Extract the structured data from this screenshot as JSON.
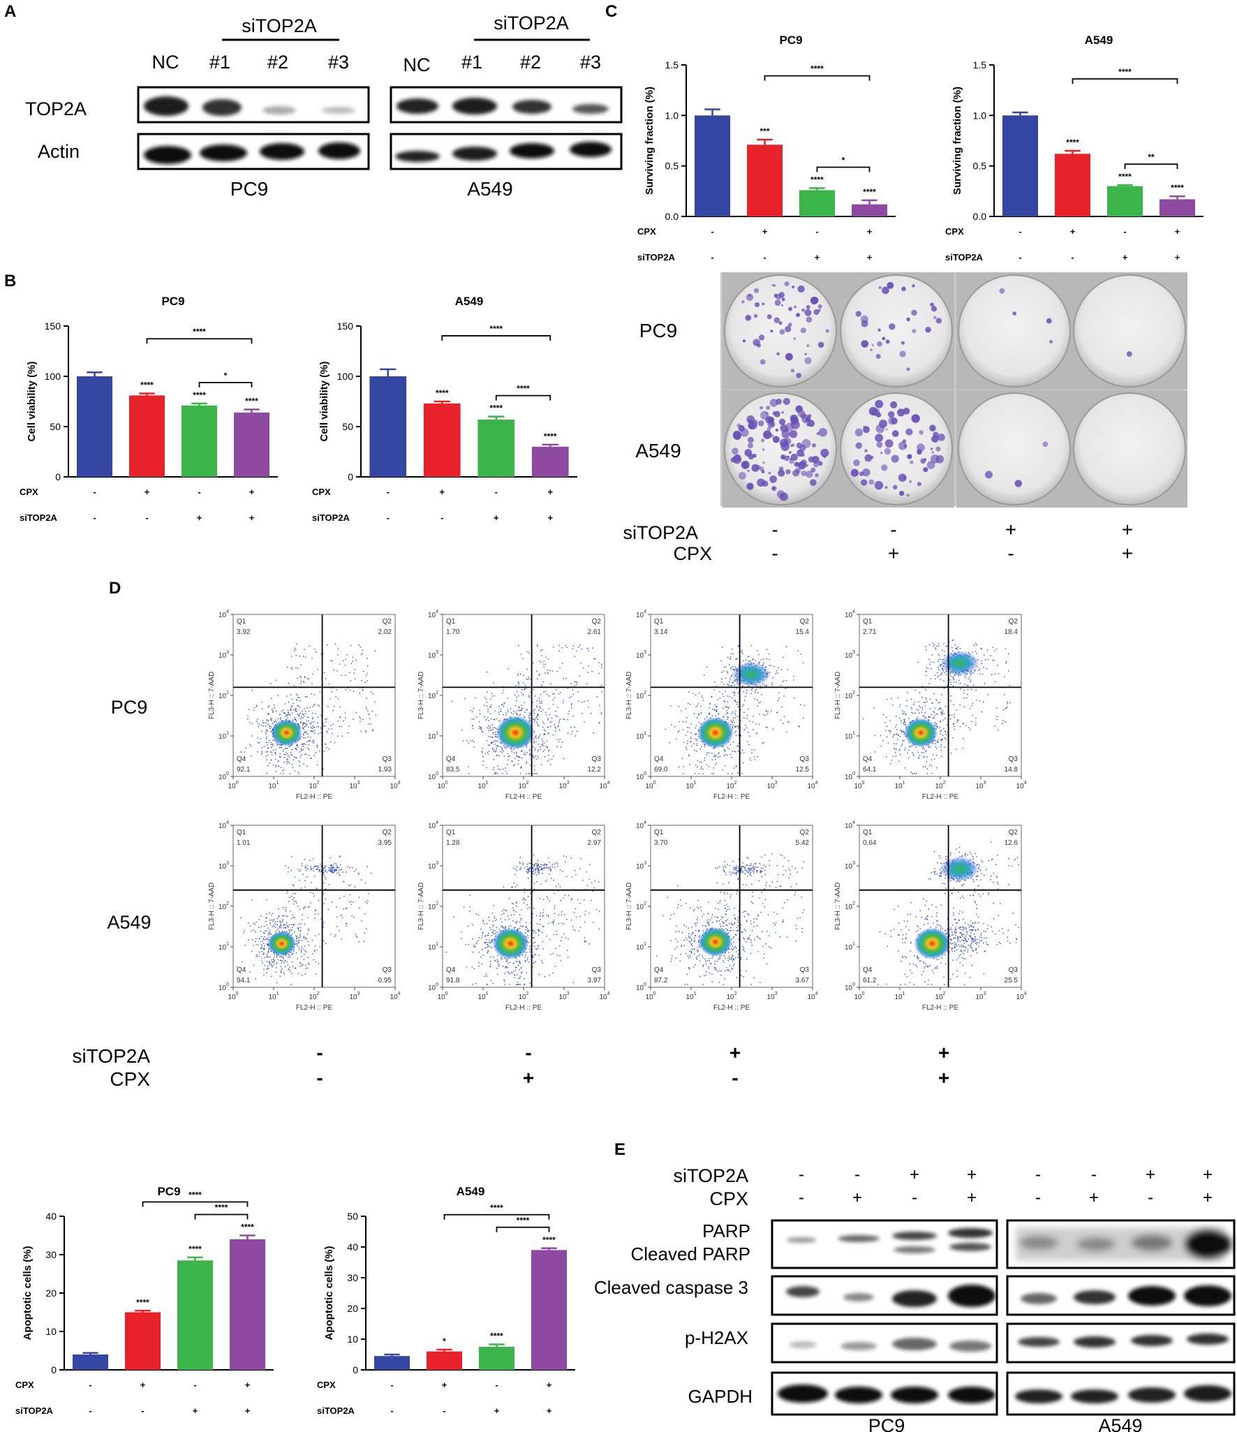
{
  "colors": {
    "blue": "#3346a1",
    "red": "#e8222a",
    "green": "#3bb44a",
    "purple": "#8e4aa0",
    "dish": "#dcdcdc",
    "colony": "#6b4fb5"
  },
  "panelA": {
    "letter": "A",
    "group_label": "siTOP2A",
    "lanes": [
      "NC",
      "#1",
      "#2",
      "#3"
    ],
    "rows": [
      "TOP2A",
      "Actin"
    ],
    "cells": [
      "PC9",
      "A549"
    ]
  },
  "panelB": {
    "letter": "B",
    "cond_labels": [
      "CPX",
      "siTOP2A"
    ],
    "conditions": {
      "CPX": [
        "-",
        "+",
        "-",
        "+"
      ],
      "siTOP2A": [
        "-",
        "-",
        "+",
        "+"
      ]
    },
    "chart_data": [
      {
        "type": "bar",
        "title": "PC9",
        "ylabel": "Cell viability (%)",
        "ylim": [
          0,
          150
        ],
        "yticks": [
          "0",
          "50",
          "100",
          "150"
        ],
        "values": [
          100,
          81,
          71,
          64
        ],
        "errors": [
          4,
          2,
          2,
          3
        ],
        "bar_stars": [
          "",
          "****",
          "****",
          "****"
        ],
        "brackets": [
          {
            "from": 1,
            "to": 3,
            "label": "****"
          },
          {
            "from": 2,
            "to": 3,
            "label": "*"
          }
        ]
      },
      {
        "type": "bar",
        "title": "A549",
        "ylabel": "Cell viability (%)",
        "ylim": [
          0,
          150
        ],
        "yticks": [
          "0",
          "50",
          "100",
          "150"
        ],
        "values": [
          100,
          73,
          57,
          30
        ],
        "errors": [
          7,
          2,
          3,
          2
        ],
        "bar_stars": [
          "",
          "****",
          "****",
          "****"
        ],
        "brackets": [
          {
            "from": 1,
            "to": 3,
            "label": "****"
          },
          {
            "from": 2,
            "to": 3,
            "label": "****"
          }
        ]
      }
    ]
  },
  "panelC": {
    "letter": "C",
    "cond_labels": [
      "CPX",
      "siTOP2A"
    ],
    "conditions": {
      "CPX": [
        "-",
        "+",
        "-",
        "+"
      ],
      "siTOP2A": [
        "-",
        "-",
        "+",
        "+"
      ]
    },
    "chart_data": [
      {
        "type": "bar",
        "title": "PC9",
        "ylabel": "Surviving fraction (%)",
        "ylim": [
          0,
          1.5
        ],
        "yticks": [
          "0.0",
          "0.5",
          "1.0",
          "1.5"
        ],
        "values": [
          1.0,
          0.71,
          0.26,
          0.12
        ],
        "errors": [
          0.06,
          0.05,
          0.02,
          0.04
        ],
        "bar_stars": [
          "",
          "***",
          "****",
          "****"
        ],
        "brackets": [
          {
            "from": 1,
            "to": 3,
            "label": "****"
          },
          {
            "from": 2,
            "to": 3,
            "label": "*"
          }
        ]
      },
      {
        "type": "bar",
        "title": "A549",
        "ylabel": "Surviving fraction (%)",
        "ylim": [
          0,
          1.5
        ],
        "yticks": [
          "0.0",
          "0.5",
          "1.0",
          "1.5"
        ],
        "values": [
          1.0,
          0.62,
          0.3,
          0.17
        ],
        "errors": [
          0.03,
          0.03,
          0.01,
          0.03
        ],
        "bar_stars": [
          "",
          "****",
          "****",
          "****"
        ],
        "brackets": [
          {
            "from": 1,
            "to": 3,
            "label": "****"
          },
          {
            "from": 2,
            "to": 3,
            "label": "**"
          }
        ]
      }
    ],
    "dish_rows": [
      "PC9",
      "A549"
    ],
    "bottom_labels": [
      "siTOP2A",
      "CPX"
    ],
    "bottom_si": [
      "-",
      "-",
      "+",
      "+"
    ],
    "bottom_cpx": [
      "-",
      "+",
      "-",
      "+"
    ]
  },
  "panelD": {
    "letter": "D",
    "rows": [
      "PC9",
      "A549"
    ],
    "xlabel": "FL2-H :: PE",
    "ylabel": "FL3-H :: 7-AAD",
    "axis_ticks": [
      "10",
      "10",
      "10",
      "10",
      "10"
    ],
    "axis_exps": [
      "0",
      "1",
      "2",
      "3",
      "4"
    ],
    "quad_names": [
      "Q1",
      "Q2",
      "Q3",
      "Q4"
    ],
    "plots": [
      {
        "q1": "3.92",
        "q2": "2.02",
        "q3": "1.93",
        "q4": "92.1"
      },
      {
        "q1": "1.70",
        "q2": "2.61",
        "q3": "12.2",
        "q4": "83.5"
      },
      {
        "q1": "3.14",
        "q2": "15.4",
        "q3": "12.5",
        "q4": "69.0"
      },
      {
        "q1": "2.71",
        "q2": "18.4",
        "q3": "14.8",
        "q4": "64.1"
      },
      {
        "q1": "1.01",
        "q2": "3.95",
        "q3": "0.95",
        "q4": "94.1"
      },
      {
        "q1": "1.28",
        "q2": "2.97",
        "q3": "3.97",
        "q4": "91.8"
      },
      {
        "q1": "3.70",
        "q2": "5.42",
        "q3": "3.67",
        "q4": "87.2"
      },
      {
        "q1": "0.64",
        "q2": "12.6",
        "q3": "25.5",
        "q4": "61.2"
      }
    ],
    "bottom_labels": [
      "siTOP2A",
      "CPX"
    ],
    "bottom_si": [
      "-",
      "-",
      "+",
      "+"
    ],
    "bottom_cpx": [
      "-",
      "+",
      "-",
      "+"
    ]
  },
  "panelApop": {
    "cond_labels": [
      "CPX",
      "siTOP2A"
    ],
    "conditions": {
      "CPX": [
        "-",
        "+",
        "-",
        "+"
      ],
      "siTOP2A": [
        "-",
        "-",
        "+",
        "+"
      ]
    },
    "chart_data": [
      {
        "type": "bar",
        "title": "PC9",
        "ylabel": "Apoptotic cells (%)",
        "ylim": [
          0,
          40
        ],
        "yticks": [
          "0",
          "10",
          "20",
          "30",
          "40"
        ],
        "values": [
          4,
          15,
          28.5,
          34
        ],
        "errors": [
          0.4,
          0.4,
          0.8,
          1
        ],
        "bar_stars": [
          "",
          "****",
          "****",
          "****"
        ],
        "brackets": [
          {
            "from": 1,
            "to": 3,
            "label": "****"
          },
          {
            "from": 2,
            "to": 3,
            "label": "****"
          }
        ]
      },
      {
        "type": "bar",
        "title": "A549",
        "ylabel": "Apoptotic cells (%)",
        "ylim": [
          0,
          50
        ],
        "yticks": [
          "0",
          "10",
          "20",
          "30",
          "40",
          "50"
        ],
        "values": [
          4.5,
          6,
          7.5,
          39
        ],
        "errors": [
          0.5,
          0.6,
          0.8,
          0.6
        ],
        "bar_stars": [
          "",
          "*",
          "****",
          "****"
        ],
        "brackets": [
          {
            "from": 1,
            "to": 3,
            "label": "****"
          },
          {
            "from": 2,
            "to": 3,
            "label": "****"
          }
        ]
      }
    ]
  },
  "panelE": {
    "letter": "E",
    "cond_labels": [
      "siTOP2A",
      "CPX"
    ],
    "si": [
      "-",
      "-",
      "+",
      "+",
      "-",
      "-",
      "+",
      "+"
    ],
    "cpx": [
      "-",
      "+",
      "-",
      "+",
      "-",
      "+",
      "-",
      "+"
    ],
    "rows": [
      "PARP",
      "Cleaved PARP",
      "Cleaved caspase 3",
      "p-H2AX",
      "GAPDH"
    ],
    "cells": [
      "PC9",
      "A549"
    ]
  }
}
